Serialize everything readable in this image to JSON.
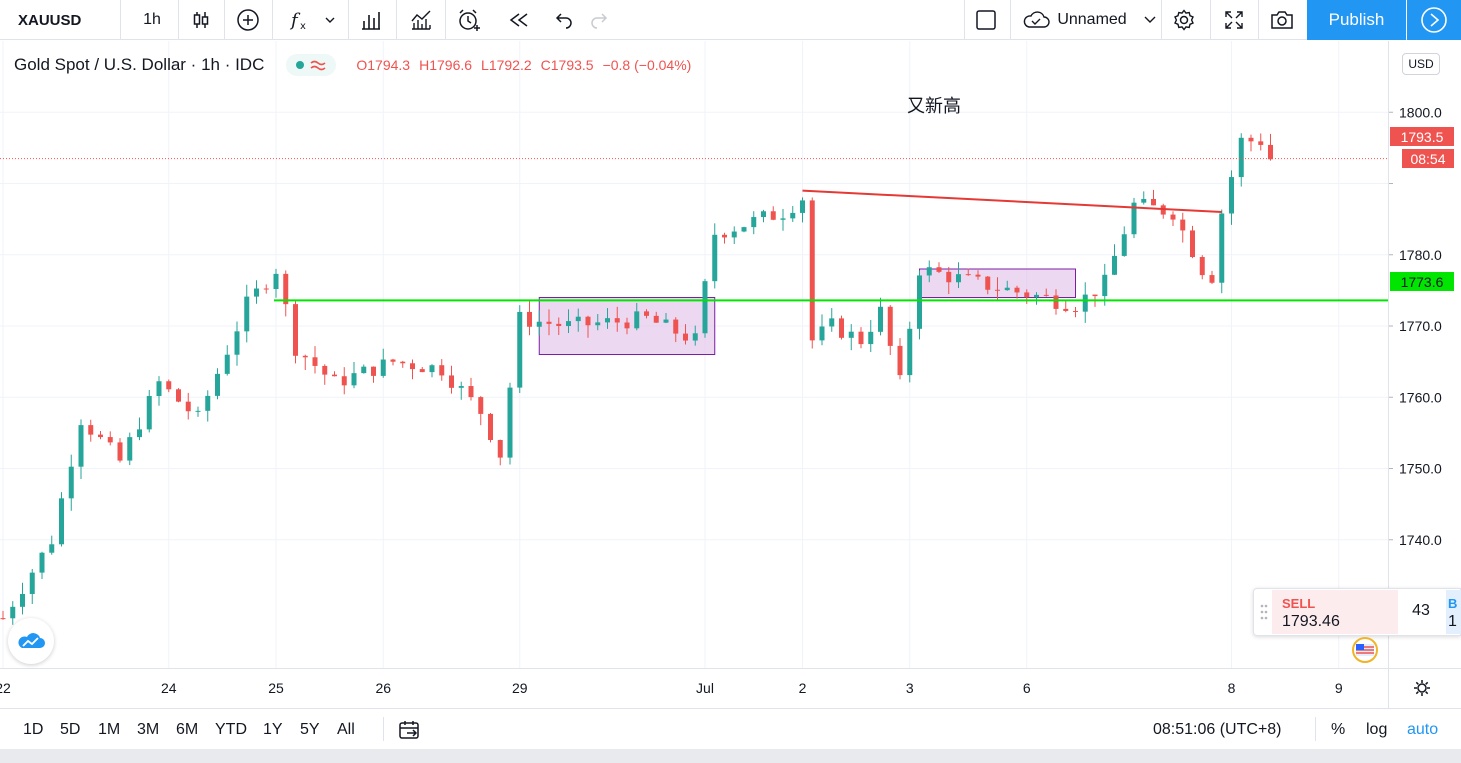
{
  "toolbar": {
    "symbol": "XAUUSD",
    "interval": "1h",
    "layout_name": "Unnamed",
    "publish_label": "Publish"
  },
  "legend": {
    "title": "Gold Spot / U.S. Dollar · 1h · IDC",
    "open": "O1794.3",
    "high": "H1796.6",
    "low": "L1792.2",
    "close": "C1793.5",
    "change": "−0.8 (−0.04%)"
  },
  "annotation": "又新高",
  "price_axis": {
    "currency": "USD",
    "last_price": "1793.5",
    "countdown": "08:54",
    "green_line_label": "1773.6"
  },
  "trade_widget": {
    "sell_label": "SELL",
    "sell_price": "1793.46",
    "spread": "43",
    "buy_label": "B",
    "buy_price": "1"
  },
  "bottom": {
    "ranges": [
      "1D",
      "5D",
      "1M",
      "3M",
      "6M",
      "YTD",
      "1Y",
      "5Y",
      "All"
    ],
    "clock": "08:51:06 (UTC+8)",
    "percent_label": "%",
    "log_label": "log",
    "auto_label": "auto"
  },
  "colors": {
    "up": "#26a69a",
    "down": "#ef5350",
    "support_line": "#00e600",
    "trend_line": "#e53935",
    "range_fill": "#e1bee7",
    "accent": "#2196f3"
  },
  "chart_data": {
    "type": "candlestick",
    "title": "Gold Spot / U.S. Dollar · 1h · IDC",
    "y_ticks": [
      1740,
      1750,
      1760,
      1770,
      1780,
      1790,
      1800
    ],
    "y_tick_labels": [
      "1740.0",
      "1750.0",
      "1760.0",
      "1770.0",
      "1780.0",
      "",
      "1800.0"
    ],
    "ylim": [
      1722,
      1810
    ],
    "x_tick_labels": [
      "22",
      "24",
      "25",
      "26",
      "29",
      "Jul",
      "2",
      "3",
      "6",
      "8",
      "9"
    ],
    "x_tick_bar_index": [
      0,
      17,
      28,
      39,
      53,
      72,
      82,
      93,
      105,
      126,
      137
    ],
    "last_price": 1793.5,
    "support_level": 1773.6,
    "path_anchors": [
      [
        0,
        1729
      ],
      [
        5,
        1740
      ],
      [
        8,
        1757
      ],
      [
        12,
        1751
      ],
      [
        16,
        1762
      ],
      [
        20,
        1757
      ],
      [
        25,
        1773
      ],
      [
        28,
        1778
      ],
      [
        30,
        1767
      ],
      [
        34,
        1762
      ],
      [
        40,
        1765
      ],
      [
        45,
        1764
      ],
      [
        49,
        1758
      ],
      [
        51,
        1752
      ],
      [
        53,
        1771
      ],
      [
        58,
        1770
      ],
      [
        66,
        1771
      ],
      [
        71,
        1768
      ],
      [
        73,
        1783
      ],
      [
        80,
        1786
      ],
      [
        82,
        1788
      ],
      [
        83,
        1768
      ],
      [
        85,
        1770
      ],
      [
        88,
        1768
      ],
      [
        90,
        1772
      ],
      [
        92,
        1762
      ],
      [
        94,
        1778
      ],
      [
        100,
        1776
      ],
      [
        110,
        1773
      ],
      [
        113,
        1776
      ],
      [
        116,
        1787
      ],
      [
        120,
        1786
      ],
      [
        123,
        1778
      ],
      [
        124,
        1777
      ],
      [
        125,
        1786
      ],
      [
        127,
        1796
      ],
      [
        129,
        1796
      ],
      [
        130,
        1793.5
      ]
    ],
    "trend_line": {
      "from": [
        82,
        1789
      ],
      "to": [
        125,
        1786
      ]
    },
    "consolidation_boxes": [
      {
        "from": 55,
        "to": 73,
        "low": 1766,
        "high": 1774
      },
      {
        "from": 94,
        "to": 110,
        "low": 1774,
        "high": 1778
      }
    ]
  }
}
